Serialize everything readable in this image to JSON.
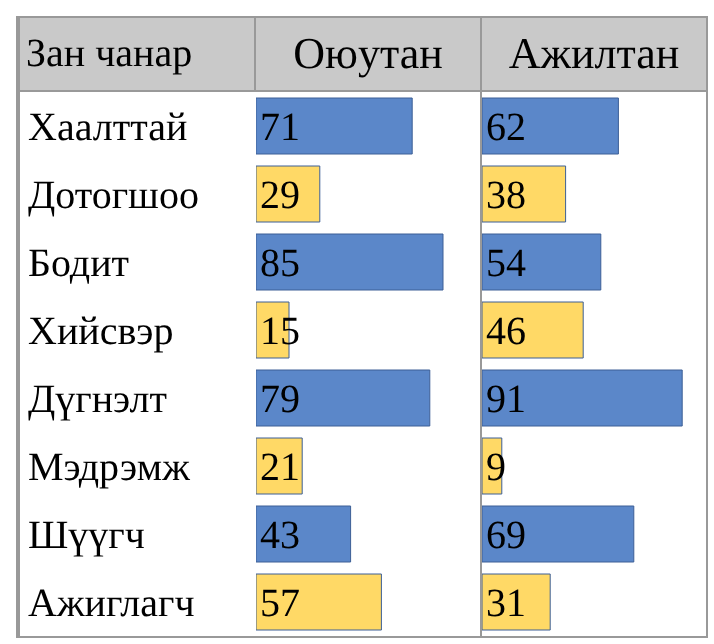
{
  "chart_data": [
    {
      "type": "bar",
      "orientation": "horizontal",
      "title": "Оюутан",
      "ylabel": "Зан чанар",
      "categories": [
        "Хаалттай",
        "Дотогшоо",
        "Бодит",
        "Хийсвэр",
        "Дүгнэлт",
        "Мэдрэмж",
        "Шүүгч",
        "Ажиглагч"
      ],
      "values": [
        71,
        29,
        85,
        15,
        79,
        21,
        43,
        57
      ],
      "colors": [
        "#5b87c9",
        "#ffd966",
        "#5b87c9",
        "#ffd966",
        "#5b87c9",
        "#ffd966",
        "#5b87c9",
        "#ffd966"
      ],
      "xlim": [
        0,
        100
      ],
      "data_labels": true
    },
    {
      "type": "bar",
      "orientation": "horizontal",
      "title": "Ажилтан",
      "values": [
        62,
        38,
        54,
        46,
        91,
        9,
        69,
        31
      ],
      "colors": [
        "#5b87c9",
        "#ffd966",
        "#5b87c9",
        "#ffd966",
        "#5b87c9",
        "#ffd966",
        "#5b87c9",
        "#ffd966"
      ],
      "xlim": [
        0,
        100
      ],
      "data_labels": true,
      "tick_labels": false
    }
  ]
}
